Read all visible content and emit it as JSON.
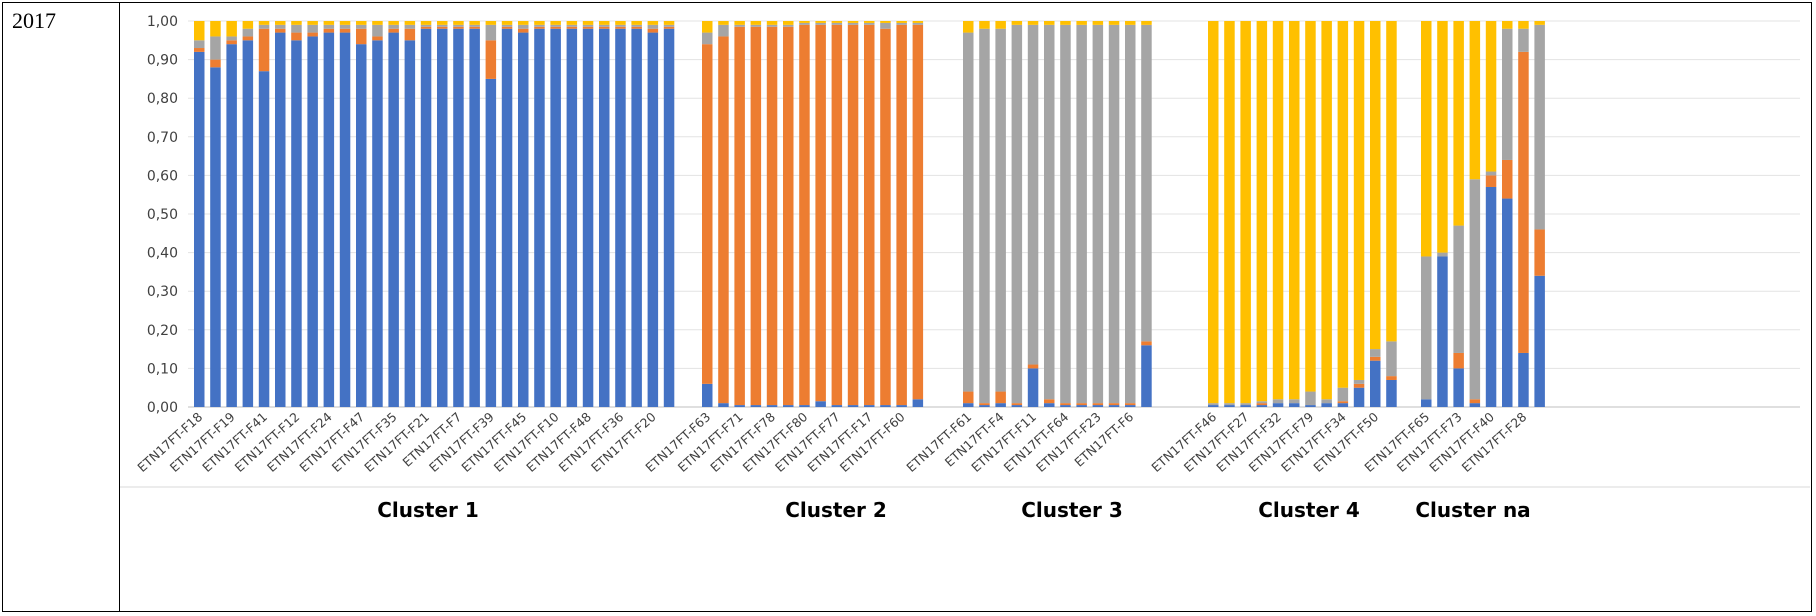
{
  "panel": {
    "year": "2017"
  },
  "chart_data": {
    "type": "bar",
    "stacked": true,
    "ylim": [
      0,
      1
    ],
    "yticks": [
      "0,00",
      "0,10",
      "0,20",
      "0,30",
      "0,40",
      "0,50",
      "0,60",
      "0,70",
      "0,80",
      "0,90",
      "1,00"
    ],
    "grid": true,
    "colors": [
      "#4472C4",
      "#ED7D31",
      "#A5A5A5",
      "#FFC000"
    ],
    "clusters": [
      {
        "label": "Cluster 1",
        "ticklabels": [
          "ETN17FT-F18",
          "ETN17FT-F19",
          "ETN17FT-F41",
          "ETN17FT-F12",
          "ETN17FT-F24",
          "ETN17FT-F47",
          "ETN17FT-F35",
          "ETN17FT-F21",
          "ETN17FT-F7",
          "ETN17FT-F39",
          "ETN17FT-F45",
          "ETN17FT-F10",
          "ETN17FT-F48",
          "ETN17FT-F36",
          "ETN17FT-F20"
        ],
        "bars": [
          [
            0.92,
            0.01,
            0.02,
            0.05
          ],
          [
            0.88,
            0.02,
            0.06,
            0.04
          ],
          [
            0.94,
            0.01,
            0.01,
            0.04
          ],
          [
            0.95,
            0.01,
            0.02,
            0.02
          ],
          [
            0.87,
            0.11,
            0.01,
            0.01
          ],
          [
            0.97,
            0.01,
            0.01,
            0.01
          ],
          [
            0.95,
            0.02,
            0.02,
            0.01
          ],
          [
            0.96,
            0.01,
            0.02,
            0.01
          ],
          [
            0.97,
            0.01,
            0.01,
            0.01
          ],
          [
            0.97,
            0.01,
            0.01,
            0.01
          ],
          [
            0.94,
            0.04,
            0.01,
            0.01
          ],
          [
            0.95,
            0.01,
            0.03,
            0.01
          ],
          [
            0.97,
            0.01,
            0.01,
            0.01
          ],
          [
            0.95,
            0.03,
            0.01,
            0.01
          ],
          [
            0.98,
            0.005,
            0.005,
            0.01
          ],
          [
            0.98,
            0.005,
            0.005,
            0.01
          ],
          [
            0.98,
            0.005,
            0.005,
            0.01
          ],
          [
            0.98,
            0.005,
            0.005,
            0.01
          ],
          [
            0.85,
            0.1,
            0.04,
            0.01
          ],
          [
            0.98,
            0.005,
            0.005,
            0.01
          ],
          [
            0.97,
            0.01,
            0.01,
            0.01
          ],
          [
            0.98,
            0.005,
            0.005,
            0.01
          ],
          [
            0.98,
            0.005,
            0.005,
            0.01
          ],
          [
            0.98,
            0.005,
            0.005,
            0.01
          ],
          [
            0.98,
            0.005,
            0.005,
            0.01
          ],
          [
            0.98,
            0.005,
            0.005,
            0.01
          ],
          [
            0.98,
            0.005,
            0.005,
            0.01
          ],
          [
            0.98,
            0.005,
            0.005,
            0.01
          ],
          [
            0.97,
            0.01,
            0.01,
            0.01
          ],
          [
            0.98,
            0.005,
            0.005,
            0.01
          ]
        ]
      },
      {
        "label": "Cluster 2",
        "ticklabels": [
          "ETN17FT-F63",
          "ETN17FT-F71",
          "ETN17FT-F78",
          "ETN17FT-F80",
          "ETN17FT-F77",
          "ETN17FT-F17",
          "ETN17FT-F60"
        ],
        "bars": [
          [
            0.06,
            0.88,
            0.03,
            0.03
          ],
          [
            0.01,
            0.95,
            0.03,
            0.01
          ],
          [
            0.005,
            0.98,
            0.005,
            0.01
          ],
          [
            0.005,
            0.98,
            0.005,
            0.01
          ],
          [
            0.005,
            0.98,
            0.005,
            0.01
          ],
          [
            0.005,
            0.98,
            0.005,
            0.01
          ],
          [
            0.005,
            0.985,
            0.005,
            0.005
          ],
          [
            0.015,
            0.975,
            0.005,
            0.005
          ],
          [
            0.005,
            0.985,
            0.005,
            0.005
          ],
          [
            0.005,
            0.985,
            0.005,
            0.005
          ],
          [
            0.005,
            0.985,
            0.005,
            0.005
          ],
          [
            0.005,
            0.975,
            0.015,
            0.005
          ],
          [
            0.005,
            0.985,
            0.005,
            0.005
          ],
          [
            0.02,
            0.97,
            0.005,
            0.005
          ]
        ]
      },
      {
        "label": "Cluster 3",
        "ticklabels": [
          "ETN17FT-F61",
          "ETN17FT-F4",
          "ETN17FT-F11",
          "ETN17FT-F64",
          "ETN17FT-F23",
          "ETN17FT-F6"
        ],
        "bars": [
          [
            0.01,
            0.03,
            0.93,
            0.03
          ],
          [
            0.005,
            0.005,
            0.97,
            0.02
          ],
          [
            0.01,
            0.03,
            0.94,
            0.02
          ],
          [
            0.005,
            0.005,
            0.98,
            0.01
          ],
          [
            0.1,
            0.01,
            0.88,
            0.01
          ],
          [
            0.01,
            0.01,
            0.97,
            0.01
          ],
          [
            0.005,
            0.005,
            0.98,
            0.01
          ],
          [
            0.005,
            0.005,
            0.98,
            0.01
          ],
          [
            0.005,
            0.005,
            0.98,
            0.01
          ],
          [
            0.005,
            0.005,
            0.98,
            0.01
          ],
          [
            0.005,
            0.005,
            0.98,
            0.01
          ],
          [
            0.16,
            0.01,
            0.82,
            0.01
          ]
        ]
      },
      {
        "label": "Cluster 4",
        "ticklabels": [
          "ETN17FT-F46",
          "ETN17FT-F27",
          "ETN17FT-F32",
          "ETN17FT-F79",
          "ETN17FT-F34",
          "ETN17FT-F50"
        ],
        "bars": [
          [
            0.005,
            0.0,
            0.005,
            0.99
          ],
          [
            0.005,
            0.0,
            0.005,
            0.99
          ],
          [
            0.005,
            0.0,
            0.005,
            0.99
          ],
          [
            0.005,
            0.005,
            0.005,
            0.985
          ],
          [
            0.01,
            0.0,
            0.01,
            0.98
          ],
          [
            0.01,
            0.0,
            0.01,
            0.98
          ],
          [
            0.005,
            0.0,
            0.035,
            0.96
          ],
          [
            0.01,
            0.0,
            0.01,
            0.98
          ],
          [
            0.01,
            0.005,
            0.035,
            0.95
          ],
          [
            0.05,
            0.01,
            0.01,
            0.93
          ],
          [
            0.12,
            0.01,
            0.02,
            0.85
          ],
          [
            0.07,
            0.01,
            0.09,
            0.83
          ]
        ]
      },
      {
        "label": "Cluster na",
        "ticklabels": [
          "ETN17FT-F65",
          "ETN17FT-F73",
          "ETN17FT-F40",
          "ETN17FT-F28"
        ],
        "bars": [
          [
            0.02,
            0.0,
            0.37,
            0.61
          ],
          [
            0.39,
            0.0,
            0.01,
            0.6
          ],
          [
            0.1,
            0.04,
            0.33,
            0.53
          ],
          [
            0.01,
            0.01,
            0.57,
            0.41
          ],
          [
            0.57,
            0.03,
            0.01,
            0.39
          ],
          [
            0.54,
            0.1,
            0.34,
            0.02
          ],
          [
            0.14,
            0.78,
            0.06,
            0.02
          ],
          [
            0.34,
            0.12,
            0.53,
            0.01
          ]
        ]
      }
    ]
  }
}
